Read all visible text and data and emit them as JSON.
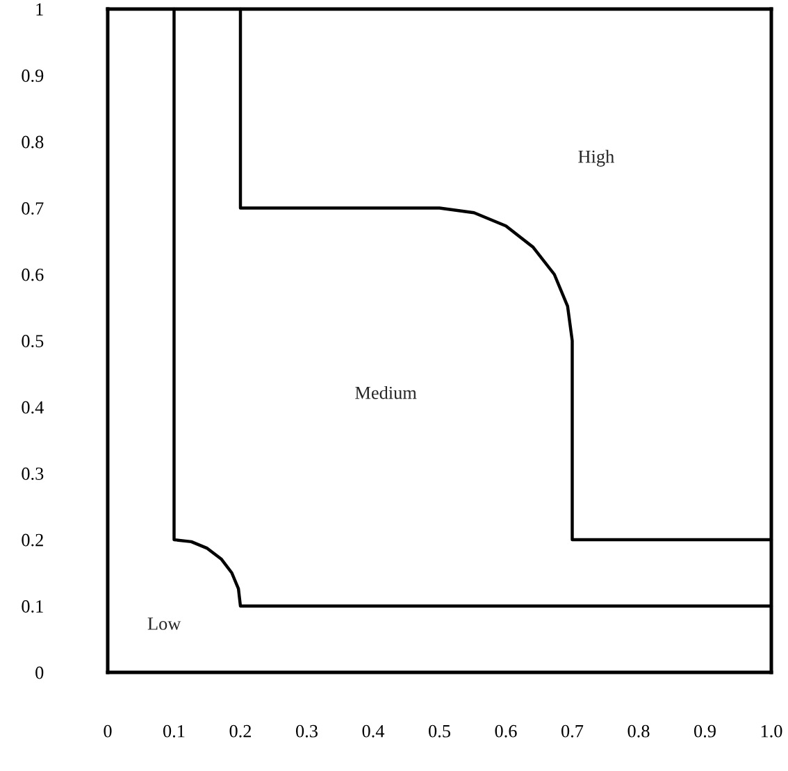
{
  "chart_data": {
    "type": "line",
    "series": [
      {
        "color": "#000000",
        "x": [
          0.1,
          0.1,
          0.126,
          0.15,
          0.171,
          0.187,
          0.197,
          0.2,
          1.0
        ],
        "values": [
          1.0,
          0.2,
          0.197,
          0.187,
          0.171,
          0.15,
          0.126,
          0.1,
          0.1
        ]
      },
      {
        "color": "#000000",
        "x": [
          0.2,
          0.2,
          0.5,
          0.552,
          0.6,
          0.641,
          0.673,
          0.693,
          0.7,
          0.7,
          1.0
        ],
        "values": [
          1.0,
          0.7,
          0.7,
          0.693,
          0.673,
          0.641,
          0.6,
          0.552,
          0.5,
          0.2,
          0.2
        ]
      }
    ],
    "annotations": [
      "High",
      "Medium",
      "Low"
    ],
    "xlim": [
      0,
      1.0
    ],
    "ylim": [
      0,
      1.0
    ],
    "xticks": [
      0,
      0.1,
      0.2,
      0.3,
      0.4,
      0.5,
      0.6,
      0.7,
      0.8,
      0.9,
      {
        "value": 1.0,
        "label": "1.0"
      }
    ],
    "yticks": [
      0,
      0.1,
      0.2,
      0.3,
      0.4,
      0.5,
      0.6,
      0.7,
      0.8,
      0.9,
      {
        "value": 1,
        "label": "1"
      }
    ],
    "grid": false,
    "marker": "none",
    "line_style": "solid"
  }
}
